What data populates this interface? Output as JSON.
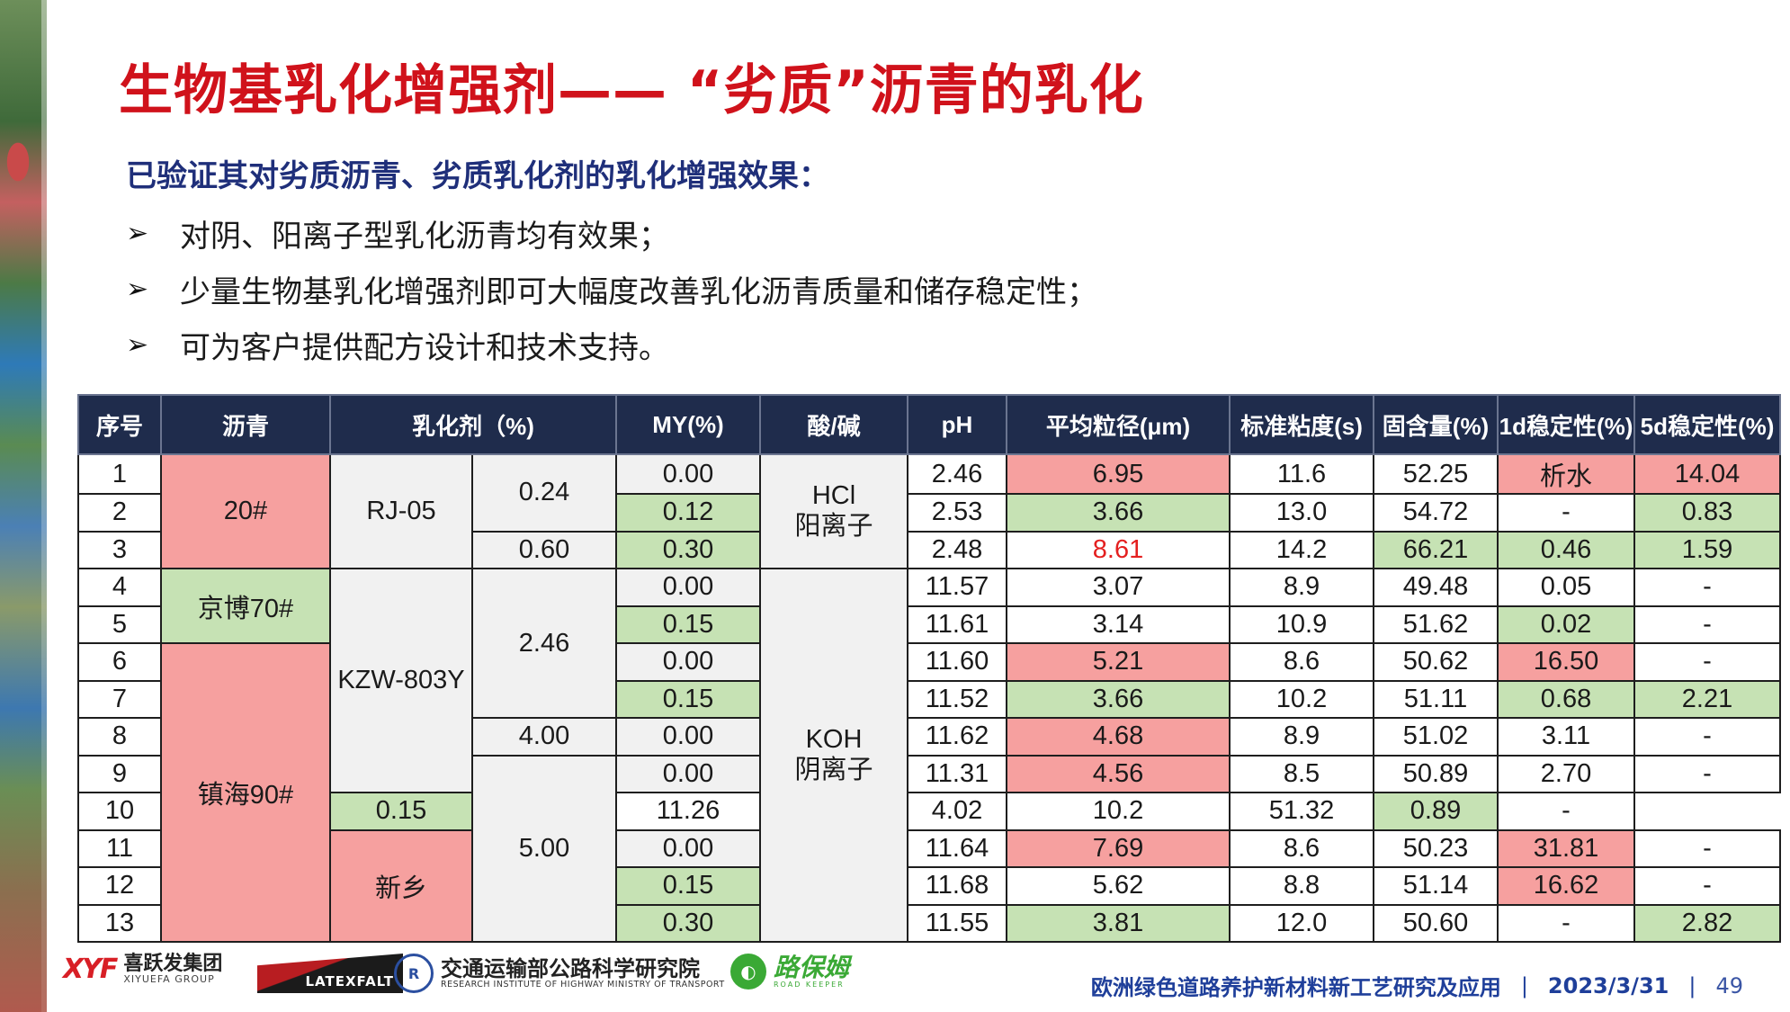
{
  "title": "生物基乳化增强剂—— “劣质”沥青的乳化",
  "subtitle": "已验证其对劣质沥青、劣质乳化剂的乳化增强效果：",
  "bullets": [
    "对阴、阳离子型乳化沥青均有效果；",
    "少量生物基乳化增强剂即可大幅度改善乳化沥青质量和储存稳定性；",
    "可为客户提供配方设计和技术支持。"
  ],
  "bullet_marker": "➢",
  "table": {
    "headers": [
      "序号",
      "沥青",
      "乳化剂（%)",
      "MY(%)",
      "酸/碱",
      "pH",
      "平均粒径(μm)",
      "标准粘度(s)",
      "固含量(%)",
      "1d稳定性(%)",
      "5d稳定性(%)"
    ],
    "merged": {
      "asphalt": [
        "20#",
        "京博70#",
        "镇海90#"
      ],
      "emulsifier": [
        "RJ-05",
        "KZW-803Y",
        "新乡"
      ],
      "dosage": [
        "0.24",
        "0.60",
        "2.46",
        "4.00",
        "5.00"
      ],
      "acid": [
        "HCl\n阳离子",
        "KOH\n阴离子"
      ]
    },
    "rows": [
      {
        "no": "1",
        "my": "0.00",
        "ph": "2.46",
        "size": "6.95",
        "visc": "11.6",
        "solid": "52.25",
        "d1": "析水",
        "d5": "14.04"
      },
      {
        "no": "2",
        "my": "0.12",
        "ph": "2.53",
        "size": "3.66",
        "visc": "13.0",
        "solid": "54.72",
        "d1": "-",
        "d5": "0.83"
      },
      {
        "no": "3",
        "my": "0.30",
        "ph": "2.48",
        "size": "8.61",
        "visc": "14.2",
        "solid": "66.21",
        "d1": "0.46",
        "d5": "1.59"
      },
      {
        "no": "4",
        "my": "0.00",
        "ph": "11.57",
        "size": "3.07",
        "visc": "8.9",
        "solid": "49.48",
        "d1": "0.05",
        "d5": "-"
      },
      {
        "no": "5",
        "my": "0.15",
        "ph": "11.61",
        "size": "3.14",
        "visc": "10.9",
        "solid": "51.62",
        "d1": "0.02",
        "d5": "-"
      },
      {
        "no": "6",
        "my": "0.00",
        "ph": "11.60",
        "size": "5.21",
        "visc": "8.6",
        "solid": "50.62",
        "d1": "16.50",
        "d5": "-"
      },
      {
        "no": "7",
        "my": "0.15",
        "ph": "11.52",
        "size": "3.66",
        "visc": "10.2",
        "solid": "51.11",
        "d1": "0.68",
        "d5": "2.21"
      },
      {
        "no": "8",
        "my": "0.00",
        "ph": "11.62",
        "size": "4.68",
        "visc": "8.9",
        "solid": "51.02",
        "d1": "3.11",
        "d5": "-"
      },
      {
        "no": "9",
        "my": "0.00",
        "ph": "11.31",
        "size": "4.56",
        "visc": "8.5",
        "solid": "50.89",
        "d1": "2.70",
        "d5": "-"
      },
      {
        "no": "10",
        "my": "0.15",
        "ph": "11.26",
        "size": "4.02",
        "visc": "10.2",
        "solid": "51.32",
        "d1": "0.89",
        "d5": "-"
      },
      {
        "no": "11",
        "my": "0.00",
        "ph": "11.64",
        "size": "7.69",
        "visc": "8.6",
        "solid": "50.23",
        "d1": "31.81",
        "d5": "-"
      },
      {
        "no": "12",
        "my": "0.15",
        "ph": "11.68",
        "size": "5.62",
        "visc": "8.8",
        "solid": "51.14",
        "d1": "16.62",
        "d5": "-"
      },
      {
        "no": "13",
        "my": "0.30",
        "ph": "11.55",
        "size": "3.81",
        "visc": "12.0",
        "solid": "50.60",
        "d1": "-",
        "d5": "2.82"
      }
    ],
    "highlight_colors": {
      "red": "#f6a09f",
      "green": "#c6e2b4",
      "header": "#1f2c4c",
      "red_text": "#e41f1f"
    }
  },
  "footer": {
    "logos": {
      "xyf_mark": "XYF",
      "xyf_cn": "喜跃发集团",
      "xyf_en": "XIYUEFA GROUP",
      "latex": "LATEXFALT",
      "riohmt_mark": "R",
      "riohmt_cn": "交通运输部公路科学研究院",
      "riohmt_en": "RESEARCH INSTITUTE OF HIGHWAY MINISTRY OF TRANSPORT",
      "lbm_mark": "◐",
      "lbm_cn": "路保姆",
      "lbm_en": "ROAD KEEPER"
    },
    "project": "欧洲绿色道路养护新材料新工艺研究及应用",
    "date": "2023/3/31",
    "page": "49",
    "sep": "|"
  },
  "colors": {
    "title": "#d0121b",
    "subtitle": "#1f2f7a",
    "footer_text": "#1f3f9a"
  }
}
